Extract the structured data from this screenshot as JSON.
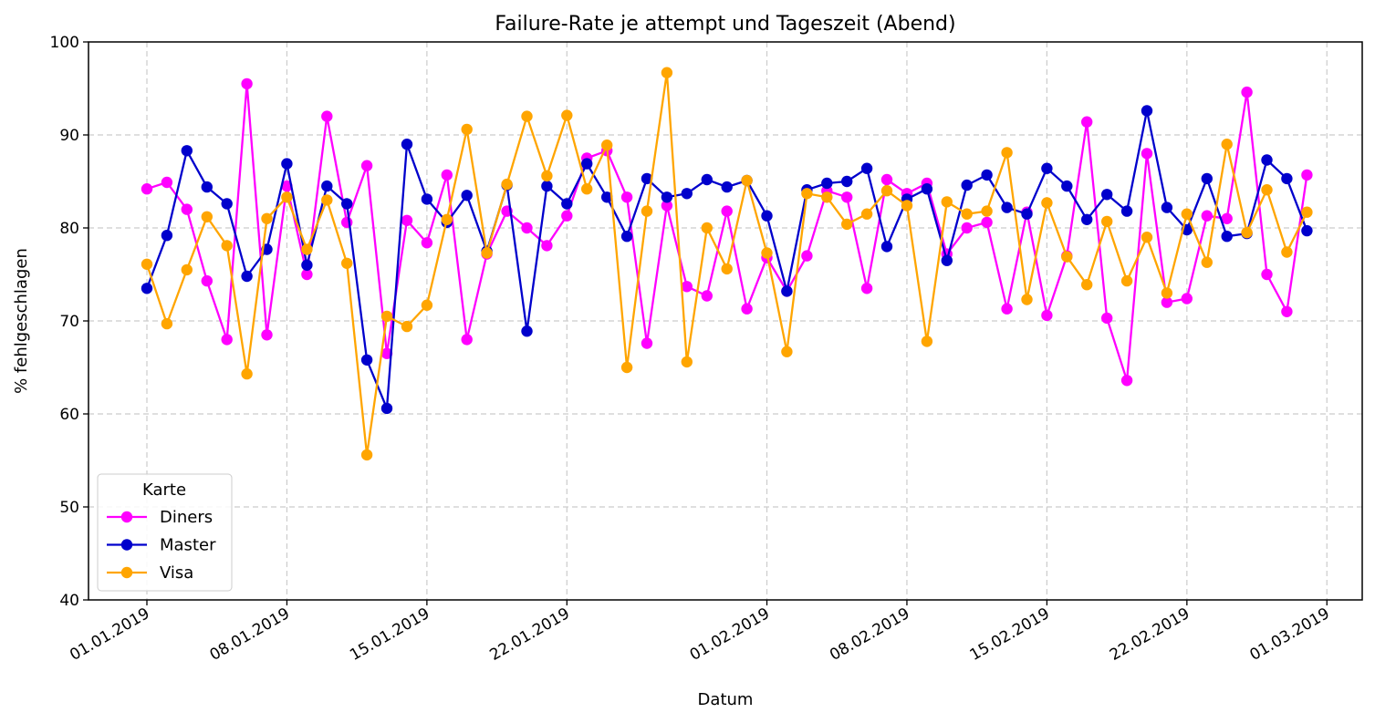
{
  "chart_data": {
    "type": "line",
    "title": "Failure-Rate je attempt und Tageszeit (Abend)",
    "xlabel": "Datum",
    "ylabel": "% fehlgeschlagen",
    "ylim": [
      40,
      100
    ],
    "yticks": [
      40,
      50,
      60,
      70,
      80,
      90,
      100
    ],
    "x_start": "01.01.2019",
    "x_end": "27.02.2019",
    "xticks": [
      "01.01.2019",
      "08.01.2019",
      "15.01.2019",
      "22.01.2019",
      "01.02.2019",
      "08.02.2019",
      "15.02.2019",
      "22.02.2019",
      "01.03.2019"
    ],
    "grid": true,
    "legend": {
      "title": "Karte",
      "placement": "lower-left"
    },
    "series": [
      {
        "name": "Diners",
        "color": "#ff00ff",
        "values": [
          84.2,
          84.9,
          82.0,
          74.3,
          68.0,
          95.5,
          68.5,
          84.5,
          75.0,
          92.0,
          80.6,
          86.7,
          66.5,
          80.8,
          78.4,
          85.7,
          68.0,
          77.2,
          81.8,
          80.0,
          78.1,
          81.3,
          87.5,
          88.3,
          83.3,
          67.6,
          82.4,
          73.7,
          72.7,
          81.8,
          71.3,
          76.8,
          73.2,
          77.0,
          84.0,
          83.3,
          73.5,
          85.2,
          83.7,
          84.8,
          77.2,
          80.0,
          80.6,
          71.3,
          81.7,
          70.6,
          77.0,
          91.4,
          70.3,
          63.6,
          88.0,
          72.0,
          72.4,
          81.3,
          81.0,
          94.6,
          75.0,
          71.0,
          85.7
        ]
      },
      {
        "name": "Master",
        "color": "#0000cc",
        "values": [
          73.5,
          79.2,
          88.3,
          84.4,
          82.6,
          74.8,
          77.7,
          86.9,
          76.0,
          84.5,
          82.6,
          65.8,
          60.6,
          89.0,
          83.1,
          80.6,
          83.5,
          77.5,
          84.6,
          68.9,
          84.5,
          82.6,
          86.9,
          83.3,
          79.1,
          85.3,
          83.3,
          83.7,
          85.2,
          84.4,
          85.1,
          81.3,
          73.2,
          84.1,
          84.8,
          85.0,
          86.4,
          78.0,
          83.1,
          84.2,
          76.5,
          84.6,
          85.7,
          82.2,
          81.5,
          86.4,
          84.5,
          80.9,
          83.6,
          81.8,
          92.6,
          82.2,
          79.8,
          85.3,
          79.1,
          79.4,
          87.3,
          85.3,
          79.7
        ]
      },
      {
        "name": "Visa",
        "color": "#ffa500",
        "values": [
          76.1,
          69.7,
          75.5,
          81.2,
          78.1,
          64.3,
          81.0,
          83.3,
          77.7,
          83.0,
          76.2,
          55.6,
          70.5,
          69.4,
          71.7,
          80.9,
          90.6,
          77.3,
          84.7,
          92.0,
          85.6,
          92.1,
          84.2,
          88.9,
          65.0,
          81.8,
          96.7,
          65.6,
          80.0,
          75.6,
          85.1,
          77.3,
          66.7,
          83.7,
          83.3,
          80.4,
          81.5,
          84.0,
          82.4,
          67.8,
          82.8,
          81.5,
          81.8,
          88.1,
          72.3,
          82.7,
          76.9,
          73.9,
          80.7,
          74.3,
          79.0,
          73.0,
          81.5,
          76.3,
          89.0,
          79.5,
          84.1,
          77.4,
          81.7
        ]
      }
    ]
  }
}
